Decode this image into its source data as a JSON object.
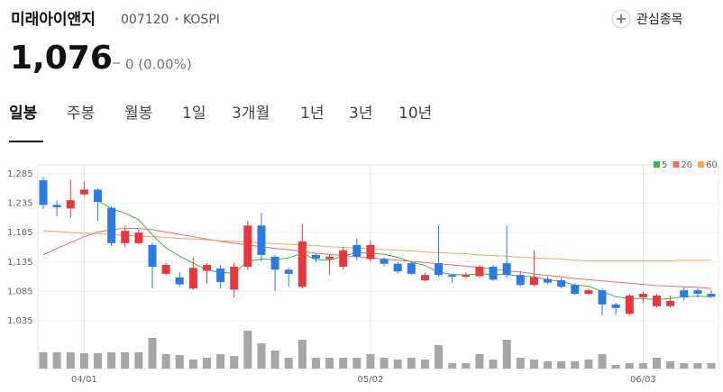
{
  "header": {
    "name": "미래아이앤지",
    "code": "007120",
    "market": "KOSPI",
    "watch": "관심종목",
    "price": "1,076",
    "change": "0 (0.00%)"
  },
  "tabs": [
    "일봉",
    "주봉",
    "월봉",
    "1일",
    "3개월",
    "1년",
    "3년",
    "10년"
  ],
  "chart_data": {
    "type": "candlestick",
    "categories": [
      null,
      null,
      null,
      "04/01",
      null,
      null,
      null,
      null,
      null,
      null,
      null,
      null,
      null,
      null,
      null,
      null,
      null,
      null,
      null,
      null,
      null,
      null,
      null,
      null,
      "05/02",
      null,
      null,
      null,
      null,
      null,
      null,
      null,
      null,
      null,
      null,
      null,
      null,
      null,
      null,
      null,
      null,
      null,
      null,
      null,
      "06/03",
      null,
      null,
      null,
      null,
      null
    ],
    "open": [
      1274,
      1232,
      1226,
      1250,
      1258,
      1227,
      1167,
      1167,
      1164,
      1115,
      1109,
      1090,
      1120,
      1124,
      1088,
      1127,
      1197,
      1144,
      1122,
      1093,
      1147,
      1140,
      1127,
      1164,
      1140,
      1140,
      1132,
      1133,
      1104,
      1133,
      1113,
      1110,
      1111,
      1127,
      1133,
      1113,
      1096,
      1106,
      1104,
      1096,
      1081,
      1087,
      1063,
      1047,
      1075,
      1060,
      1060,
      1087,
      1087,
      1081
    ],
    "high": [
      1280,
      1240,
      1275,
      1272,
      1260,
      1230,
      1197,
      1190,
      1168,
      1133,
      1118,
      1143,
      1133,
      1130,
      1134,
      1205,
      1219,
      1147,
      1125,
      1200,
      1150,
      1148,
      1160,
      1175,
      1172,
      1143,
      1135,
      1136,
      1117,
      1197,
      1115,
      1118,
      1130,
      1130,
      1197,
      1118,
      1155,
      1110,
      1108,
      1099,
      1090,
      1090,
      1066,
      1081,
      1084,
      1081,
      1078,
      1092,
      1090,
      1087
    ],
    "low": [
      1225,
      1213,
      1210,
      1248,
      1205,
      1162,
      1160,
      1165,
      1090,
      1112,
      1093,
      1088,
      1098,
      1090,
      1075,
      1122,
      1136,
      1086,
      1093,
      1090,
      1135,
      1113,
      1122,
      1138,
      1135,
      1128,
      1115,
      1113,
      1102,
      1110,
      1100,
      1108,
      1108,
      1103,
      1108,
      1094,
      1093,
      1097,
      1090,
      1079,
      1079,
      1044,
      1045,
      1044,
      1065,
      1058,
      1058,
      1070,
      1075,
      1074
    ],
    "close": [
      1232,
      1228,
      1240,
      1258,
      1237,
      1167,
      1188,
      1185,
      1127,
      1130,
      1097,
      1125,
      1130,
      1101,
      1127,
      1197,
      1147,
      1122,
      1115,
      1170,
      1141,
      1144,
      1155,
      1144,
      1164,
      1132,
      1119,
      1115,
      1113,
      1113,
      1110,
      1113,
      1127,
      1105,
      1113,
      1096,
      1109,
      1100,
      1093,
      1081,
      1087,
      1063,
      1057,
      1078,
      1081,
      1078,
      1069,
      1075,
      1081,
      1076
    ],
    "up_color": "#e8383d",
    "down_color": "#2c7be5",
    "volume": [
      18,
      18,
      18,
      17,
      17,
      18,
      18,
      18,
      34,
      16,
      15,
      10,
      12,
      16,
      14,
      42,
      28,
      20,
      12,
      32,
      12,
      12,
      12,
      12,
      16,
      12,
      10,
      12,
      10,
      26,
      6,
      6,
      16,
      10,
      32,
      12,
      10,
      8,
      8,
      8,
      10,
      16,
      4,
      6,
      6,
      12,
      8,
      6,
      6,
      6
    ],
    "volume_color": "#a6a6a6",
    "vlim": [
      0,
      42
    ],
    "series": [
      {
        "name": "5",
        "color": "#3cb44b",
        "values": [
          null,
          null,
          null,
          null,
          1239,
          1226,
          1218,
          1207,
          1181,
          1159,
          1145,
          1133,
          1122,
          1117,
          1116,
          1136,
          1140,
          1139,
          1142,
          1150,
          1139,
          1138,
          1145,
          1151,
          1150,
          1148,
          1143,
          1135,
          1129,
          1118,
          1114,
          1113,
          1115,
          1114,
          1114,
          1111,
          1110,
          1105,
          1102,
          1096,
          1094,
          1085,
          1076,
          1073,
          1073,
          1071,
          1073,
          1076,
          1077,
          1076
        ]
      },
      {
        "name": "20",
        "color": "#f06a6a",
        "values": [
          1147,
          1158,
          1168,
          1178,
          1186,
          1190,
          1192,
          1192,
          1190,
          1186,
          1182,
          1178,
          1174,
          1170,
          1167,
          1164,
          1161,
          1158,
          1156,
          1153,
          1150,
          1148,
          1146,
          1144,
          1142,
          1140,
          1138,
          1136,
          1134,
          1132,
          1130,
          1128,
          1126,
          1123,
          1120,
          1118,
          1115,
          1112,
          1110,
          1107,
          1105,
          1103,
          1101,
          1099,
          1097,
          1095,
          1094,
          1093,
          1092,
          1090
        ]
      },
      {
        "name": "60",
        "color": "#f2a65a",
        "values": [
          1188,
          1187,
          1185,
          1184,
          1183,
          1182,
          1180,
          1179,
          1178,
          1177,
          1175,
          1174,
          1173,
          1171,
          1170,
          1169,
          1168,
          1166,
          1165,
          1164,
          1163,
          1161,
          1160,
          1159,
          1157,
          1156,
          1155,
          1154,
          1152,
          1151,
          1150,
          1149,
          1147,
          1146,
          1145,
          1143,
          1142,
          1141,
          1140,
          1138,
          1137,
          1137,
          1137,
          1137,
          1137,
          1137,
          1137,
          1138,
          1138,
          1138
        ]
      }
    ],
    "ylim": [
      1029,
      1300
    ],
    "yticks": [
      {
        "value": 1285,
        "label": "1,285"
      },
      {
        "value": 1235,
        "label": "1,235"
      },
      {
        "value": 1185,
        "label": "1,185"
      },
      {
        "value": 1135,
        "label": "1,135"
      },
      {
        "value": 1085,
        "label": "1,085"
      },
      {
        "value": 1035,
        "label": "1,035"
      }
    ],
    "grid": true,
    "legend": "top-right"
  }
}
